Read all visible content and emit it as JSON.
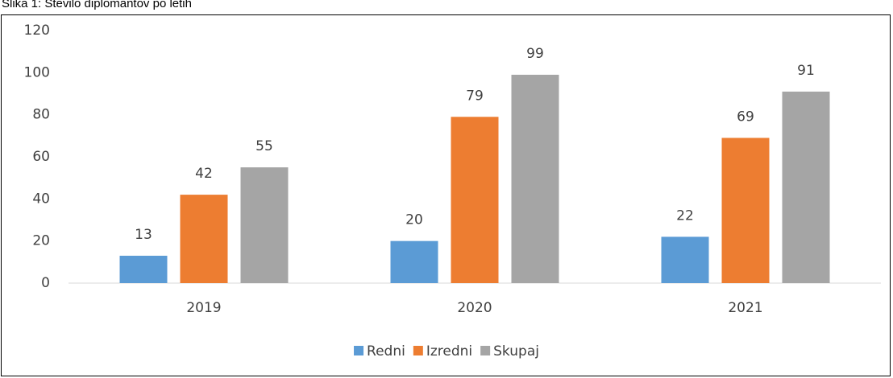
{
  "chart_data": {
    "type": "bar",
    "title": "Slika 1: Število diplomantov po letih",
    "categories": [
      "2019",
      "2020",
      "2021"
    ],
    "series": [
      {
        "name": "Redni",
        "color": "#5b9bd5",
        "values": [
          13,
          20,
          22
        ]
      },
      {
        "name": "Izredni",
        "color": "#ed7d31",
        "values": [
          42,
          79,
          69
        ]
      },
      {
        "name": "Skupaj",
        "color": "#a5a5a5",
        "values": [
          55,
          99,
          91
        ]
      }
    ],
    "ylim": [
      0,
      120
    ],
    "yticks": [
      0,
      20,
      40,
      60,
      80,
      100,
      120
    ],
    "grid": false,
    "legend": "bottom"
  }
}
